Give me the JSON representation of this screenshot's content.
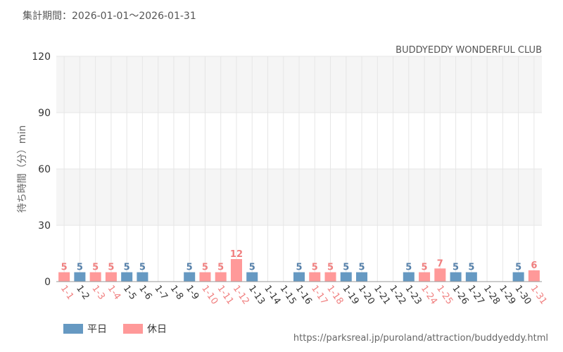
{
  "period_text": "集計期間：2026-01-01～2026-01-31",
  "source_url": "https://parksreal.jp/puroland/attraction/buddyeddy.html",
  "colors": {
    "weekday": "#6699c2",
    "holiday": "#ff9999",
    "weekday_label": "#5580aa",
    "holiday_label": "#f07f7f",
    "axis_text": "#333333",
    "grid": "#e6e6e6",
    "band": "#f5f5f5"
  },
  "legend": [
    {
      "name": "平日",
      "color": "#6699c2"
    },
    {
      "name": "休日",
      "color": "#ff9999"
    }
  ],
  "chart_data": {
    "type": "bar",
    "title": "BUDDYEDDY WONDERFUL CLUB",
    "ylabel": "待ち時間（分）min",
    "xlabel": "",
    "ylim": [
      0,
      120
    ],
    "yticks": [
      0,
      30,
      60,
      90,
      120
    ],
    "grid": true,
    "legend_position": "bottom-left",
    "categories": [
      "1-1",
      "1-2",
      "1-3",
      "1-4",
      "1-5",
      "1-6",
      "1-7",
      "1-8",
      "1-9",
      "1-10",
      "1-11",
      "1-12",
      "1-13",
      "1-14",
      "1-15",
      "1-16",
      "1-17",
      "1-18",
      "1-19",
      "1-20",
      "1-21",
      "1-22",
      "1-23",
      "1-24",
      "1-25",
      "1-26",
      "1-27",
      "1-28",
      "1-29",
      "1-30",
      "1-31"
    ],
    "day_type": [
      "休日",
      "平日",
      "休日",
      "休日",
      "平日",
      "平日",
      "平日",
      "平日",
      "平日",
      "休日",
      "休日",
      "休日",
      "平日",
      "平日",
      "平日",
      "平日",
      "休日",
      "休日",
      "平日",
      "平日",
      "平日",
      "平日",
      "平日",
      "休日",
      "休日",
      "平日",
      "平日",
      "平日",
      "平日",
      "平日",
      "休日"
    ],
    "values": [
      5,
      5,
      5,
      5,
      5,
      5,
      null,
      null,
      5,
      5,
      5,
      12,
      5,
      null,
      null,
      5,
      5,
      5,
      5,
      5,
      null,
      null,
      5,
      5,
      7,
      5,
      5,
      null,
      null,
      5,
      6
    ],
    "series": [
      {
        "name": "平日",
        "values": [
          null,
          5,
          null,
          null,
          5,
          5,
          null,
          null,
          5,
          null,
          null,
          null,
          5,
          null,
          null,
          5,
          null,
          null,
          5,
          5,
          null,
          null,
          5,
          null,
          null,
          5,
          5,
          null,
          null,
          5,
          null
        ]
      },
      {
        "name": "休日",
        "values": [
          5,
          null,
          5,
          5,
          null,
          null,
          null,
          null,
          null,
          5,
          5,
          12,
          null,
          null,
          null,
          null,
          5,
          5,
          null,
          null,
          null,
          null,
          null,
          5,
          7,
          null,
          null,
          null,
          null,
          null,
          6
        ]
      }
    ]
  }
}
